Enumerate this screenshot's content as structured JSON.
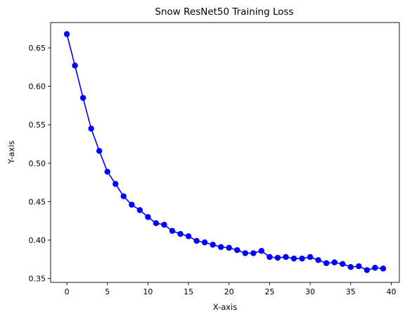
{
  "chart_data": {
    "type": "line",
    "title": "Snow ResNet50 Training Loss",
    "xlabel": "X-axis",
    "ylabel": "Y-axis",
    "xlim": [
      -2,
      41
    ],
    "ylim": [
      0.345,
      0.683
    ],
    "x_ticks": [
      0,
      5,
      10,
      15,
      20,
      25,
      30,
      35,
      40
    ],
    "y_ticks": [
      0.35,
      0.4,
      0.45,
      0.5,
      0.55,
      0.6,
      0.65
    ],
    "grid": false,
    "legend": "none",
    "series": [
      {
        "color": "#0000ff",
        "marker": "circle",
        "x": [
          0,
          1,
          2,
          3,
          4,
          5,
          6,
          7,
          8,
          9,
          10,
          11,
          12,
          13,
          14,
          15,
          16,
          17,
          18,
          19,
          20,
          21,
          22,
          23,
          24,
          25,
          26,
          27,
          28,
          29,
          30,
          31,
          32,
          33,
          34,
          35,
          36,
          37,
          38,
          39
        ],
        "values": [
          0.668,
          0.627,
          0.585,
          0.545,
          0.516,
          0.489,
          0.473,
          0.457,
          0.446,
          0.439,
          0.43,
          0.422,
          0.42,
          0.412,
          0.408,
          0.405,
          0.399,
          0.397,
          0.394,
          0.391,
          0.39,
          0.387,
          0.383,
          0.383,
          0.386,
          0.378,
          0.377,
          0.378,
          0.376,
          0.376,
          0.378,
          0.374,
          0.37,
          0.371,
          0.369,
          0.365,
          0.366,
          0.361,
          0.364,
          0.363
        ]
      }
    ]
  }
}
